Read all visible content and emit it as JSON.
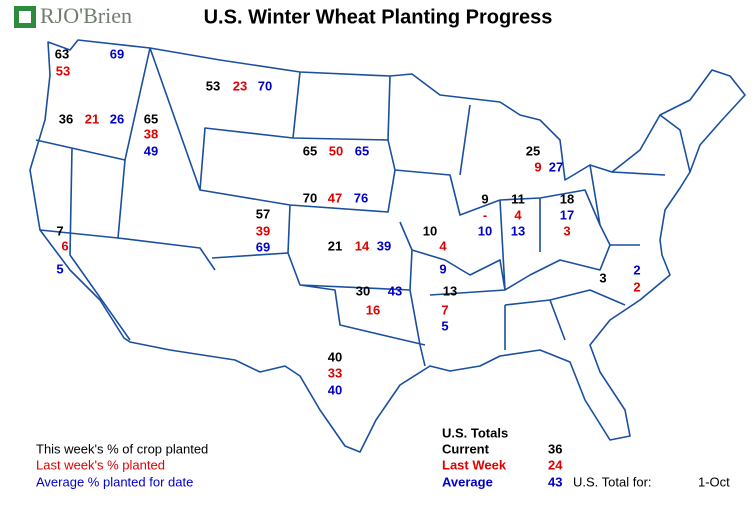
{
  "logo": "RJO'Brien",
  "title": "U.S. Winter Wheat Planting Progress",
  "states": [
    {
      "current": 63,
      "last_week": 53,
      "average": 69
    },
    {
      "current": 53,
      "last_week": 23,
      "average": 70
    },
    {
      "current": 36,
      "last_week": 21,
      "average": 26
    },
    {
      "current": 65,
      "last_week": 38,
      "average": 49
    },
    {
      "current": 65,
      "last_week": 50,
      "average": 65
    },
    {
      "current": 25,
      "last_week": 9,
      "average": 27
    },
    {
      "current": 70,
      "last_week": 47,
      "average": 76
    },
    {
      "current": 9,
      "last_week": "-",
      "average": 10
    },
    {
      "current": 11,
      "last_week": 4,
      "average": 13
    },
    {
      "current": 18,
      "last_week": 3,
      "average": 17
    },
    {
      "current": 7,
      "last_week": 6,
      "average": 5
    },
    {
      "current": 57,
      "last_week": 39,
      "average": 69
    },
    {
      "current": 21,
      "last_week": 14,
      "average": 39
    },
    {
      "current": 10,
      "last_week": 4,
      "average": 9
    },
    {
      "current": 3,
      "last_week": 2,
      "average": 2
    },
    {
      "current": 30,
      "last_week": 16,
      "average": 43
    },
    {
      "current": 13,
      "last_week": 7,
      "average": 5
    },
    {
      "current": 40,
      "last_week": 33,
      "average": 40
    }
  ],
  "legend": [
    "This week's % of crop planted",
    "Last week's % planted",
    "Average % planted for date"
  ],
  "totals": {
    "heading": "U.S. Totals",
    "rows": [
      [
        "Current",
        36
      ],
      [
        "Last Week",
        24
      ],
      [
        "Average",
        43
      ]
    ],
    "date_label": "U.S. Total for:",
    "date": "1-Oct"
  }
}
